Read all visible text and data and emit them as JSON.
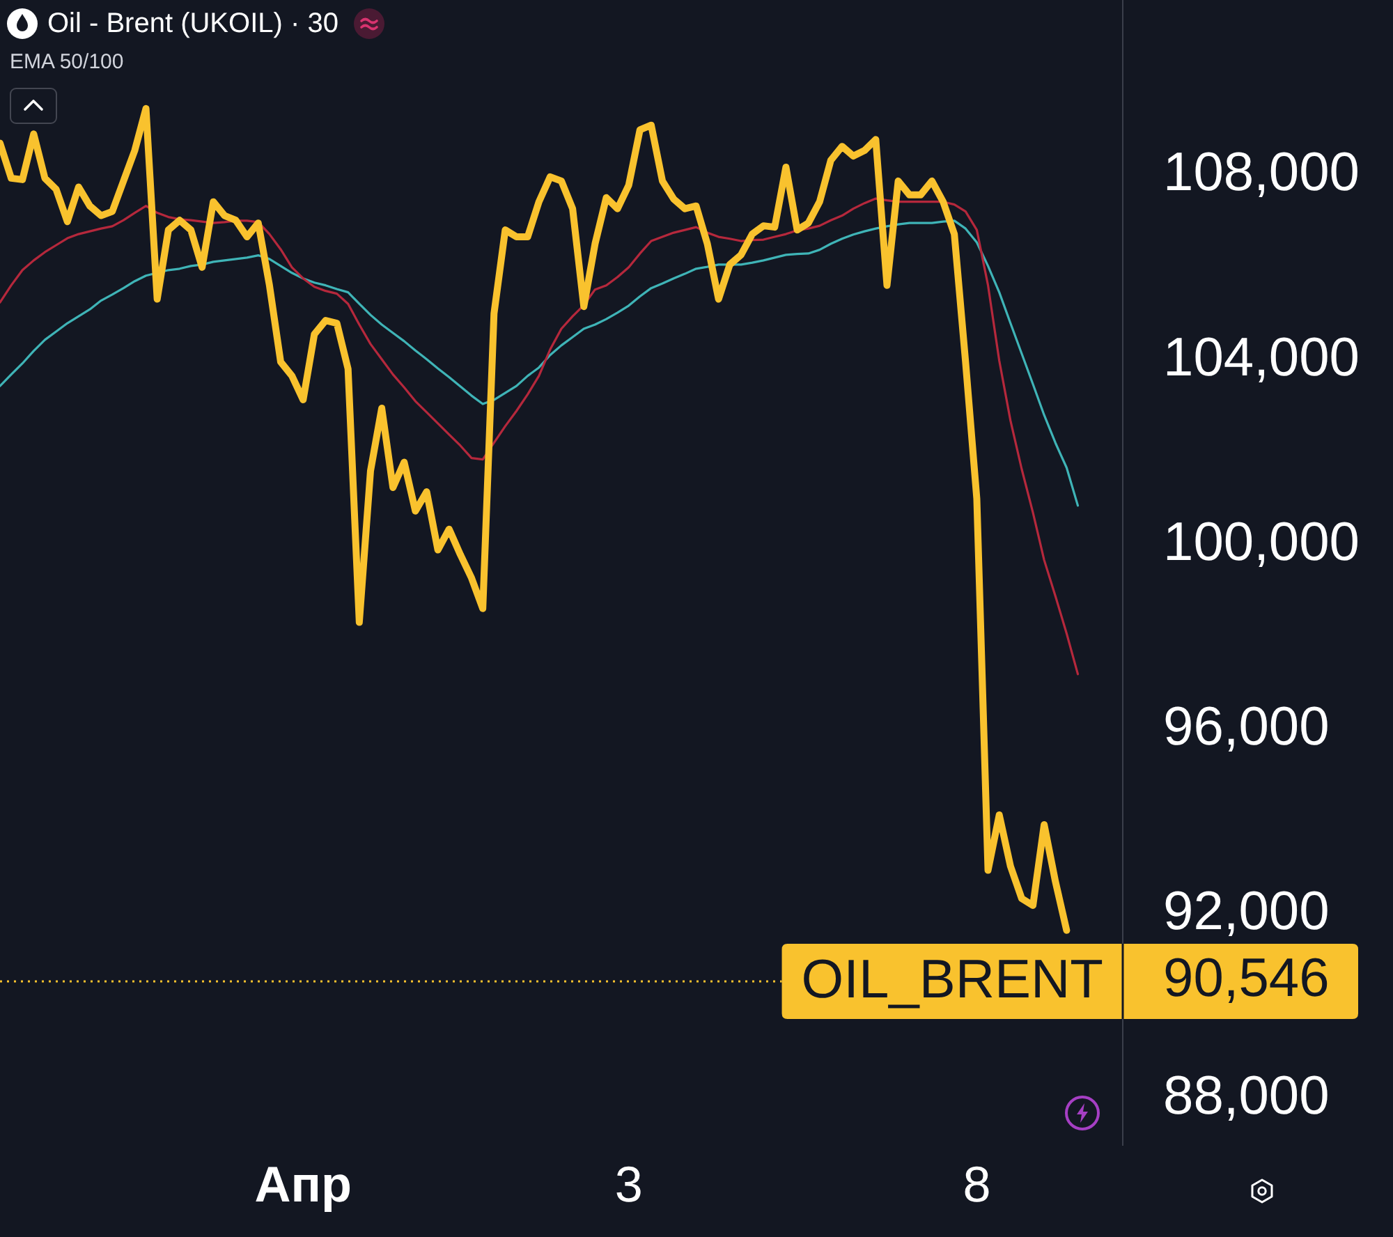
{
  "chart_data": {
    "type": "line",
    "title": "Oil - Brent (UKOIL) · 30",
    "subtitle": "EMA 50/100",
    "categories": [
      null,
      null,
      null,
      null,
      null,
      null,
      null,
      null,
      null,
      null,
      null,
      null,
      null,
      null,
      null,
      null,
      null,
      null,
      null,
      null,
      null,
      null,
      null,
      null,
      null,
      null,
      null,
      "Апр",
      null,
      null,
      null,
      null,
      null,
      null,
      null,
      null,
      null,
      null,
      null,
      null,
      null,
      null,
      null,
      null,
      null,
      null,
      null,
      null,
      null,
      null,
      null,
      null,
      null,
      null,
      null,
      null,
      "3",
      null,
      null,
      null,
      null,
      null,
      null,
      null,
      null,
      null,
      null,
      null,
      null,
      null,
      null,
      null,
      null,
      null,
      null,
      null,
      null,
      null,
      null,
      null,
      null,
      null,
      null,
      null,
      null,
      null,
      null,
      "8",
      null,
      null,
      null,
      null,
      null,
      null,
      null,
      null,
      null,
      null,
      null,
      null,
      null
    ],
    "series": [
      {
        "color": "#f9c22e",
        "values": [
          108700,
          107940,
          107910,
          108900,
          107940,
          107700,
          107000,
          107750,
          107340,
          107130,
          107220,
          107880,
          108540,
          109450,
          105320,
          106820,
          107030,
          106820,
          106010,
          107430,
          107130,
          107030,
          106670,
          106970,
          105620,
          103960,
          103660,
          103140,
          104560,
          104860,
          104800,
          103810,
          98320,
          101600,
          102960,
          101240,
          101790,
          100730,
          101150,
          99890,
          100340,
          99790,
          99280,
          98620,
          105010,
          106820,
          106670,
          106670,
          107430,
          107970,
          107880,
          107280,
          105160,
          106520,
          107520,
          107280,
          107790,
          108990,
          109090,
          107880,
          107490,
          107280,
          107340,
          106520,
          105320,
          106070,
          106280,
          106730,
          106910,
          106880,
          108180,
          106820,
          106970,
          107430,
          108330,
          108630,
          108420,
          108540,
          108780,
          105620,
          107880,
          107580,
          107580,
          107880,
          107430,
          106730,
          103960,
          101000,
          92950,
          94150,
          93040,
          92340,
          92190,
          93940,
          92710,
          91650,
          null,
          null,
          null,
          null,
          null
        ]
      },
      {
        "color": "#b5283c",
        "values": [
          105250,
          105620,
          105950,
          106160,
          106340,
          106490,
          106640,
          106730,
          106790,
          106850,
          106900,
          107030,
          107190,
          107340,
          107190,
          107100,
          107050,
          107030,
          107000,
          106970,
          106990,
          107020,
          107020,
          106990,
          106730,
          106400,
          106010,
          105770,
          105590,
          105500,
          105440,
          105220,
          104770,
          104350,
          104020,
          103690,
          103410,
          103110,
          102870,
          102630,
          102390,
          102150,
          101880,
          101850,
          102210,
          102570,
          102900,
          103260,
          103660,
          104230,
          104680,
          104950,
          105190,
          105530,
          105620,
          105800,
          106010,
          106310,
          106580,
          106670,
          106760,
          106820,
          106880,
          106760,
          106670,
          106630,
          106580,
          106600,
          106610,
          106670,
          106730,
          106810,
          106850,
          106910,
          107030,
          107130,
          107280,
          107400,
          107500,
          107460,
          107430,
          107430,
          107430,
          107430,
          107430,
          107370,
          107220,
          106820,
          105620,
          103990,
          102690,
          101640,
          100700,
          99670,
          98890,
          98080,
          97200,
          null,
          null,
          null,
          null
        ]
      },
      {
        "color": "#3fb4b7",
        "values": [
          103440,
          103690,
          103930,
          104200,
          104440,
          104620,
          104800,
          104950,
          105100,
          105290,
          105420,
          105560,
          105710,
          105830,
          105890,
          105950,
          105980,
          106040,
          106070,
          106130,
          106160,
          106190,
          106220,
          106270,
          106190,
          106040,
          105890,
          105770,
          105680,
          105620,
          105540,
          105470,
          105220,
          104980,
          104770,
          104590,
          104410,
          104210,
          104020,
          103820,
          103630,
          103430,
          103230,
          103050,
          103140,
          103290,
          103440,
          103660,
          103840,
          104110,
          104320,
          104500,
          104680,
          104770,
          104890,
          105030,
          105180,
          105380,
          105560,
          105660,
          105770,
          105870,
          105980,
          106020,
          106070,
          106070,
          106070,
          106110,
          106160,
          106220,
          106280,
          106300,
          106310,
          106390,
          106520,
          106630,
          106720,
          106790,
          106850,
          106900,
          106940,
          106970,
          106970,
          106970,
          107000,
          107020,
          106850,
          106550,
          106040,
          105470,
          104800,
          104140,
          103480,
          102810,
          102210,
          101670,
          100850,
          null,
          null,
          null,
          null
        ]
      }
    ],
    "ylim": [
      87000,
      111800
    ],
    "yticks": [
      {
        "value": 88000,
        "label": "88,000"
      },
      {
        "value": 90546,
        "label": "90,546"
      },
      {
        "value": 92000,
        "label": "92,000"
      },
      {
        "value": 96000,
        "label": "96,000"
      },
      {
        "value": 100000,
        "label": "100,000"
      },
      {
        "value": 104000,
        "label": "104,000"
      },
      {
        "value": 108000,
        "label": "108,000"
      }
    ],
    "ref_lines": [
      {
        "axis": "y",
        "value": 90546,
        "label": "OIL_BRENT",
        "color": "#f9c22e",
        "line_style": "dotted"
      }
    ]
  }
}
